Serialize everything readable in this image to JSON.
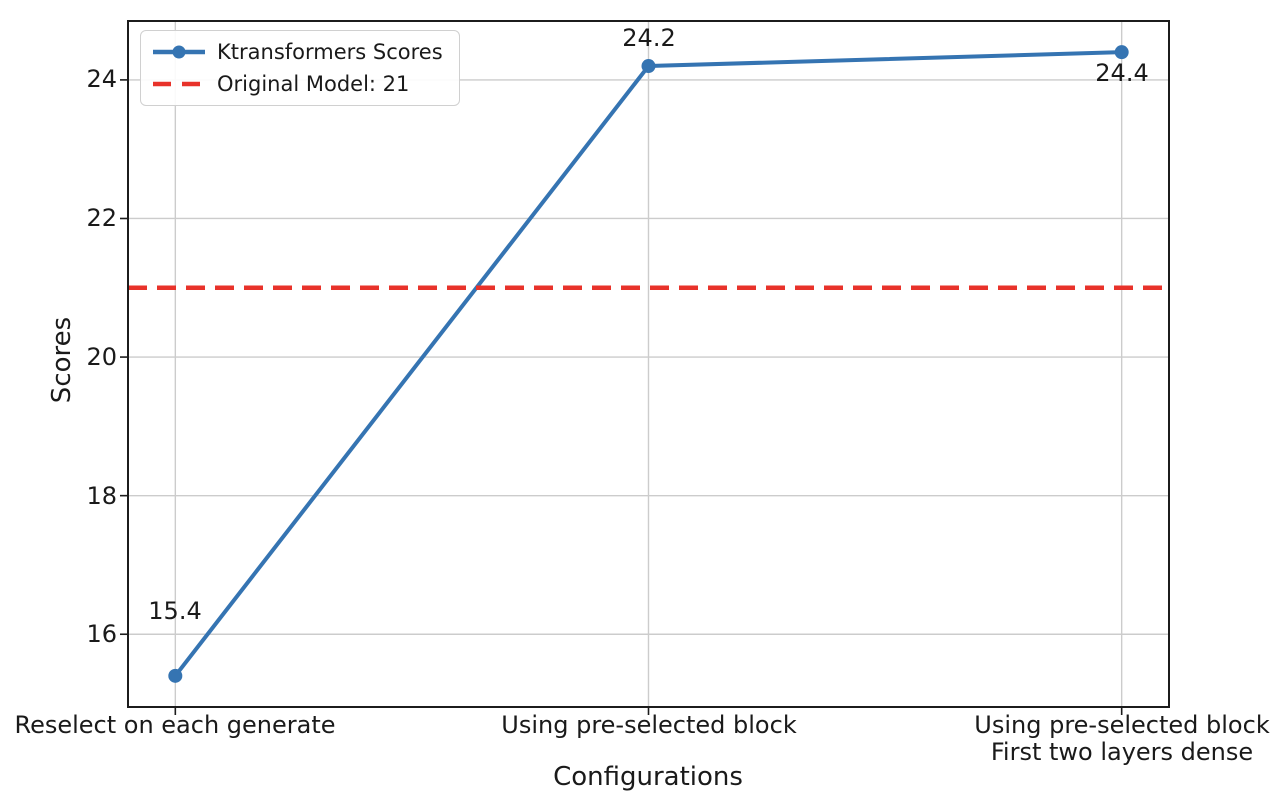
{
  "chart_data": {
    "type": "line",
    "xlabel": "Configurations",
    "ylabel": "Scores",
    "categories": [
      "Reselect on each generate",
      "Using pre-selected block",
      "Using pre-selected block\nFirst two layers dense"
    ],
    "series": [
      {
        "name": "Ktransformers Scores",
        "values": [
          15.4,
          24.2,
          24.4
        ],
        "color": "#3574b2",
        "marker": "circle",
        "style": "solid"
      }
    ],
    "reference_line": {
      "label": "Original Model: 21",
      "value": 21,
      "color": "#e8322a",
      "style": "dashed"
    },
    "annotations": [
      {
        "text": "15.4",
        "point_index": 0,
        "placement": "above"
      },
      {
        "text": "24.2",
        "point_index": 1,
        "placement": "above"
      },
      {
        "text": "24.4",
        "point_index": 2,
        "placement": "below"
      }
    ],
    "yticks": [
      16,
      18,
      20,
      22,
      24
    ],
    "ylim": [
      14.95,
      24.85
    ],
    "grid": true,
    "grid_color": "#cccccc",
    "frame_color": "#1c1c1c",
    "legend_position": "upper left",
    "legend_entries": [
      "Ktransformers Scores",
      "Original Model: 21"
    ]
  }
}
